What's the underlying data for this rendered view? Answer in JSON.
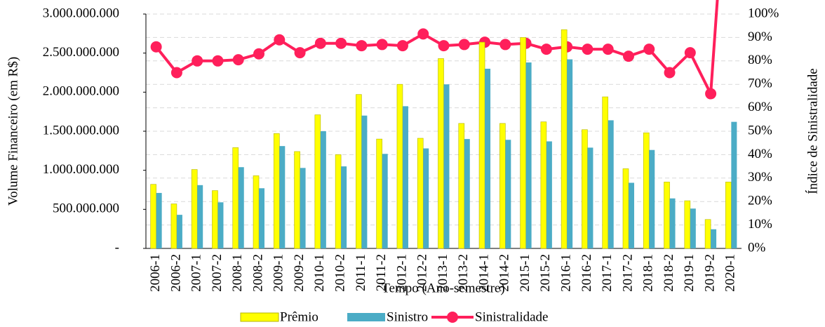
{
  "chart_data": {
    "type": "bar",
    "x_label": "Tempo (Ano-semestre)",
    "y_label": "Volume Financeiro (em R$)",
    "y2_label": "Índice de Sinistralidade",
    "categories": [
      "2006-1",
      "2006-2",
      "2007-1",
      "2007-2",
      "2008-1",
      "2008-2",
      "2009-1",
      "2009-2",
      "2010-1",
      "2010-2",
      "2011-1",
      "2011-2",
      "2012-1",
      "2012-2",
      "2013-1",
      "2013-2",
      "2014-1",
      "2014-2",
      "2015-1",
      "2015-2",
      "2016-1",
      "2016-2",
      "2017-1",
      "2017-2",
      "2018-1",
      "2018-2",
      "2019-1",
      "2019-2",
      "2020-1"
    ],
    "series": [
      {
        "name": "Prêmio",
        "color": "#ffff00",
        "values": [
          820000000,
          570000000,
          1010000000,
          740000000,
          1290000000,
          930000000,
          1470000000,
          1240000000,
          1710000000,
          1200000000,
          1970000000,
          1400000000,
          2100000000,
          1410000000,
          2430000000,
          1600000000,
          2640000000,
          1600000000,
          2700000000,
          1620000000,
          2800000000,
          1520000000,
          1940000000,
          1020000000,
          1480000000,
          850000000,
          610000000,
          370000000,
          850000000
        ]
      },
      {
        "name": "Sinistro",
        "color": "#4bacc6",
        "values": [
          710000000,
          430000000,
          810000000,
          590000000,
          1040000000,
          770000000,
          1310000000,
          1030000000,
          1500000000,
          1050000000,
          1700000000,
          1210000000,
          1820000000,
          1280000000,
          2100000000,
          1400000000,
          2300000000,
          1390000000,
          2380000000,
          1370000000,
          2420000000,
          1290000000,
          1640000000,
          840000000,
          1260000000,
          640000000,
          510000000,
          245000000,
          1620000000
        ]
      },
      {
        "name": "Sinistralidade",
        "color": "#ff1f5b",
        "type": "line",
        "axis": "y2",
        "values": [
          86,
          75,
          80,
          80,
          80.5,
          83,
          89,
          83.5,
          87.5,
          87.5,
          86.5,
          87,
          86.5,
          91.5,
          86.5,
          87,
          88,
          87,
          87.5,
          85,
          86,
          85,
          85,
          82,
          85,
          75,
          83.5,
          66,
          190
        ]
      }
    ],
    "ylim": [
      0,
      3000000000
    ],
    "yticks": [
      {
        "value": 0,
        "label": "-"
      },
      {
        "value": 500000000,
        "label": "500.000.000"
      },
      {
        "value": 1000000000,
        "label": "1.000.000.000"
      },
      {
        "value": 1500000000,
        "label": "1.500.000.000"
      },
      {
        "value": 2000000000,
        "label": "2.000.000.000"
      },
      {
        "value": 2500000000,
        "label": "2.500.000.000"
      },
      {
        "value": 3000000000,
        "label": "3.000.000.000"
      }
    ],
    "y2lim": [
      0,
      100
    ],
    "y2ticks": [
      {
        "value": 0,
        "label": "0%"
      },
      {
        "value": 10,
        "label": "10%"
      },
      {
        "value": 20,
        "label": "20%"
      },
      {
        "value": 30,
        "label": "30%"
      },
      {
        "value": 40,
        "label": "40%"
      },
      {
        "value": 50,
        "label": "50%"
      },
      {
        "value": 60,
        "label": "60%"
      },
      {
        "value": 70,
        "label": "70%"
      },
      {
        "value": 80,
        "label": "80%"
      },
      {
        "value": 90,
        "label": "90%"
      },
      {
        "value": 100,
        "label": "100%"
      }
    ],
    "grid": true,
    "legend": "bottom"
  }
}
